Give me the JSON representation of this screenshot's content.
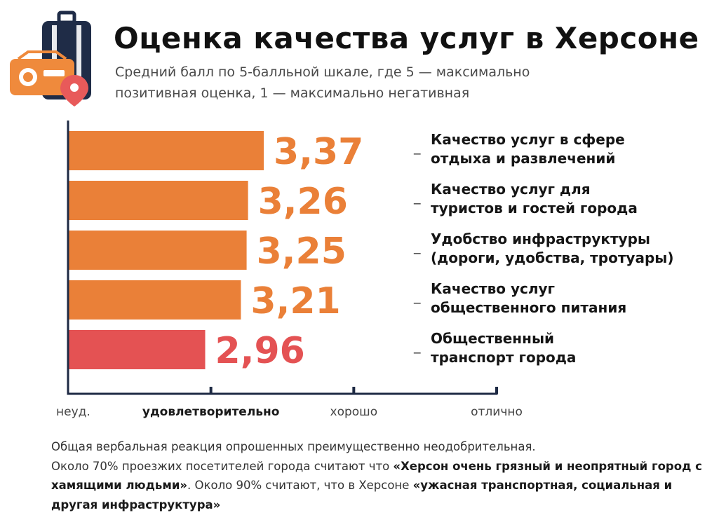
{
  "header": {
    "title": "Оценка качества услуг в Херсоне",
    "subtitle_line1": "Средний балл по 5-балльной шкале, где 5 — максимально",
    "subtitle_line2": "позитивная оценка, 1 — максимально негативная"
  },
  "icon": "suitcase-radio-map-pin-icon",
  "colors": {
    "bar": "#ea8038",
    "bar_lowest": "#e45253",
    "axis": "#1e2a44",
    "suitcase": "#1f2c47",
    "radio": "#ef8a3c",
    "pin": "#e85a5a"
  },
  "chart_data": {
    "type": "bar",
    "orientation": "horizontal",
    "categories": [
      [
        "Качество услуг в сфере",
        "отдыха и развлечений"
      ],
      [
        "Качество услуг для",
        "туристов и гостей города"
      ],
      [
        "Удобство инфраструктуры",
        "(дороги, удобства, тротуары)"
      ],
      [
        "Качество услуг",
        "общественного питания"
      ],
      [
        "Общественный",
        "транспорт города"
      ]
    ],
    "values": [
      3.37,
      3.26,
      3.25,
      3.21,
      2.96
    ],
    "value_labels": [
      "3,37",
      "3,26",
      "3,25",
      "3,21",
      "2,96"
    ],
    "xlim": [
      2,
      5
    ],
    "x_ticks": [
      2,
      3,
      4,
      5
    ],
    "x_tick_labels": [
      "неуд.",
      "удовлетворительно",
      "хорошо",
      "отлично"
    ],
    "highlighted_tick_label": "удовлетворительно",
    "label_marker": "_",
    "grid": false,
    "legend": "none"
  },
  "footnote": {
    "line1": "Общая вербальная реакция опрошенных преимущественно неодобрительная.",
    "p2_plain1": "Около 70% проезжих посетителей города считают что ",
    "p2_bold1": "«Херсон очень грязный и неопрятный город с хамящими людьми»",
    "p2_plain2": ". Около 90% считают, что в Херсоне ",
    "p2_bold2": "«ужасная транспортная, социальная и другая инфраструктура»"
  }
}
